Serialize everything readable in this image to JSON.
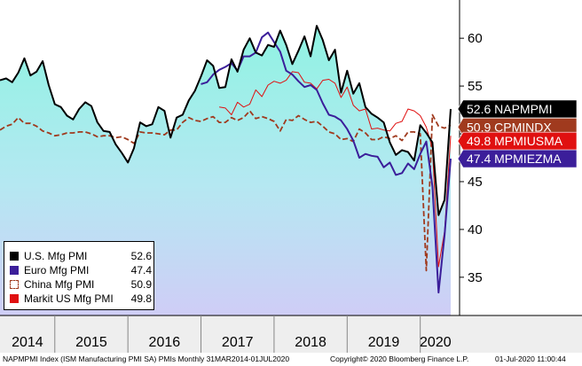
{
  "chart_data": {
    "type": "line",
    "x_dates": [
      "2014-04",
      "2014-05",
      "2014-06",
      "2014-07",
      "2014-08",
      "2014-09",
      "2014-10",
      "2014-11",
      "2014-12",
      "2015-01",
      "2015-02",
      "2015-03",
      "2015-04",
      "2015-05",
      "2015-06",
      "2015-07",
      "2015-08",
      "2015-09",
      "2015-10",
      "2015-11",
      "2015-12",
      "2016-01",
      "2016-02",
      "2016-03",
      "2016-04",
      "2016-05",
      "2016-06",
      "2016-07",
      "2016-08",
      "2016-09",
      "2016-10",
      "2016-11",
      "2016-12",
      "2017-01",
      "2017-02",
      "2017-03",
      "2017-04",
      "2017-05",
      "2017-06",
      "2017-07",
      "2017-08",
      "2017-09",
      "2017-10",
      "2017-11",
      "2017-12",
      "2018-01",
      "2018-02",
      "2018-03",
      "2018-04",
      "2018-05",
      "2018-06",
      "2018-07",
      "2018-08",
      "2018-09",
      "2018-10",
      "2018-11",
      "2018-12",
      "2019-01",
      "2019-02",
      "2019-03",
      "2019-04",
      "2019-05",
      "2019-06",
      "2019-07",
      "2019-08",
      "2019-09",
      "2019-10",
      "2019-11",
      "2019-12",
      "2020-01",
      "2020-02",
      "2020-03",
      "2020-04",
      "2020-05",
      "2020-06"
    ],
    "y_range": [
      31,
      64
    ],
    "y_ticks": [
      35,
      40,
      45,
      50,
      55,
      60
    ],
    "x_labels": [
      "2014",
      "2015",
      "2016",
      "2017",
      "2018",
      "2019",
      "2020"
    ],
    "series": [
      {
        "name": "U.S. Mfg PMI",
        "ticker": "NAPMPMI",
        "last": "52.6",
        "color": "#000000",
        "style": "solid-area",
        "values": [
          55.6,
          55.8,
          55.4,
          56.4,
          57.9,
          56.1,
          56.5,
          57.6,
          55.1,
          53.1,
          52.8,
          51.9,
          51.5,
          52.6,
          53.3,
          52.9,
          51.2,
          50.3,
          50.2,
          48.9,
          48.0,
          47.0,
          48.5,
          51.2,
          50.8,
          51.0,
          52.8,
          52.4,
          49.6,
          51.7,
          52.0,
          53.5,
          54.5,
          56.0,
          57.7,
          57.1,
          54.8,
          54.9,
          57.8,
          56.5,
          58.8,
          60.0,
          58.5,
          58.2,
          59.3,
          59.1,
          60.8,
          59.3,
          57.3,
          58.7,
          60.2,
          58.1,
          61.3,
          59.8,
          57.7,
          58.8,
          54.3,
          56.6,
          54.2,
          55.3,
          52.8,
          52.1,
          51.7,
          51.2,
          49.1,
          47.8,
          48.3,
          48.1,
          47.2,
          50.9,
          50.1,
          49.1,
          41.5,
          43.1,
          52.6
        ]
      },
      {
        "name": "Euro Mfg PMI",
        "ticker": "MPMIEZMA",
        "last": "47.4",
        "color": "#3b1e9a",
        "style": "solid",
        "start_index": 33,
        "values": [
          55.2,
          55.4,
          56.2,
          56.7,
          57.0,
          57.4,
          56.6,
          58.1,
          58.1,
          58.5,
          60.1,
          60.6,
          59.6,
          58.6,
          56.6,
          56.2,
          55.5,
          54.9,
          55.1,
          54.6,
          53.2,
          52.0,
          51.8,
          51.4,
          50.5,
          49.3,
          47.5,
          47.9,
          47.7,
          47.6,
          46.5,
          47.0,
          45.7,
          45.9,
          46.9,
          46.3,
          47.9,
          49.2,
          44.5,
          33.4,
          39.4,
          47.4
        ]
      },
      {
        "name": "China Mfg PMI",
        "ticker": "CPMINDX",
        "last": "50.9",
        "color": "#a03a1e",
        "style": "dashed",
        "values": [
          50.4,
          50.8,
          51.0,
          51.7,
          51.1,
          51.1,
          50.8,
          50.3,
          50.1,
          49.8,
          49.9,
          50.1,
          50.1,
          50.2,
          50.2,
          50.0,
          49.7,
          49.8,
          49.8,
          49.6,
          49.7,
          49.4,
          49.0,
          50.2,
          50.1,
          50.1,
          50.0,
          49.9,
          50.4,
          50.4,
          51.2,
          51.7,
          51.4,
          51.3,
          51.6,
          51.8,
          51.2,
          51.2,
          51.7,
          51.4,
          51.7,
          52.4,
          51.6,
          51.8,
          51.6,
          51.3,
          50.3,
          51.5,
          51.4,
          51.9,
          51.5,
          51.2,
          51.3,
          50.8,
          50.2,
          50.0,
          49.4,
          49.5,
          49.2,
          50.5,
          50.1,
          49.4,
          49.4,
          49.7,
          49.5,
          49.8,
          49.3,
          50.2,
          50.2,
          50.0,
          35.7,
          52.0,
          50.8,
          50.6,
          50.9
        ]
      },
      {
        "name": "Markit US Mfg PMI",
        "ticker": "MPMIUSMA",
        "last": "49.8",
        "color": "#e01010",
        "style": "solid-thin",
        "start_index": 36,
        "values": [
          52.8,
          52.7,
          52.0,
          53.3,
          52.8,
          53.1,
          54.6,
          53.9,
          55.1,
          55.5,
          55.3,
          55.6,
          56.5,
          56.4,
          55.4,
          55.3,
          54.7,
          55.6,
          55.7,
          55.3,
          53.8,
          54.9,
          53.0,
          52.4,
          52.6,
          50.5,
          50.6,
          50.4,
          50.3,
          51.1,
          51.3,
          52.6,
          52.4,
          51.9,
          50.7,
          48.5,
          36.1,
          39.8,
          49.8
        ]
      }
    ],
    "flags": [
      {
        "value": "52.6",
        "ticker": "NAPMPMI",
        "bg": "#000000",
        "fg": "#ffffff"
      },
      {
        "value": "50.9",
        "ticker": "CPMINDX",
        "bg": "#a03a1e",
        "fg": "#ffffff"
      },
      {
        "value": "49.8",
        "ticker": "MPMIUSMA",
        "bg": "#e01010",
        "fg": "#ffffff"
      },
      {
        "value": "47.4",
        "ticker": "MPMIEZMA",
        "bg": "#3b1e9a",
        "fg": "#ffffff"
      }
    ],
    "legend_placement": "bottom-left",
    "grid": false
  },
  "footer": {
    "title": "NAPMPMI Index (ISM Manufacturing PMI SA) PMIs  Monthly 31MAR2014-01JUL2020",
    "copyright": "Copyright© 2020 Bloomberg Finance L.P.",
    "timestamp": "01-Jul-2020 11:00:44"
  }
}
